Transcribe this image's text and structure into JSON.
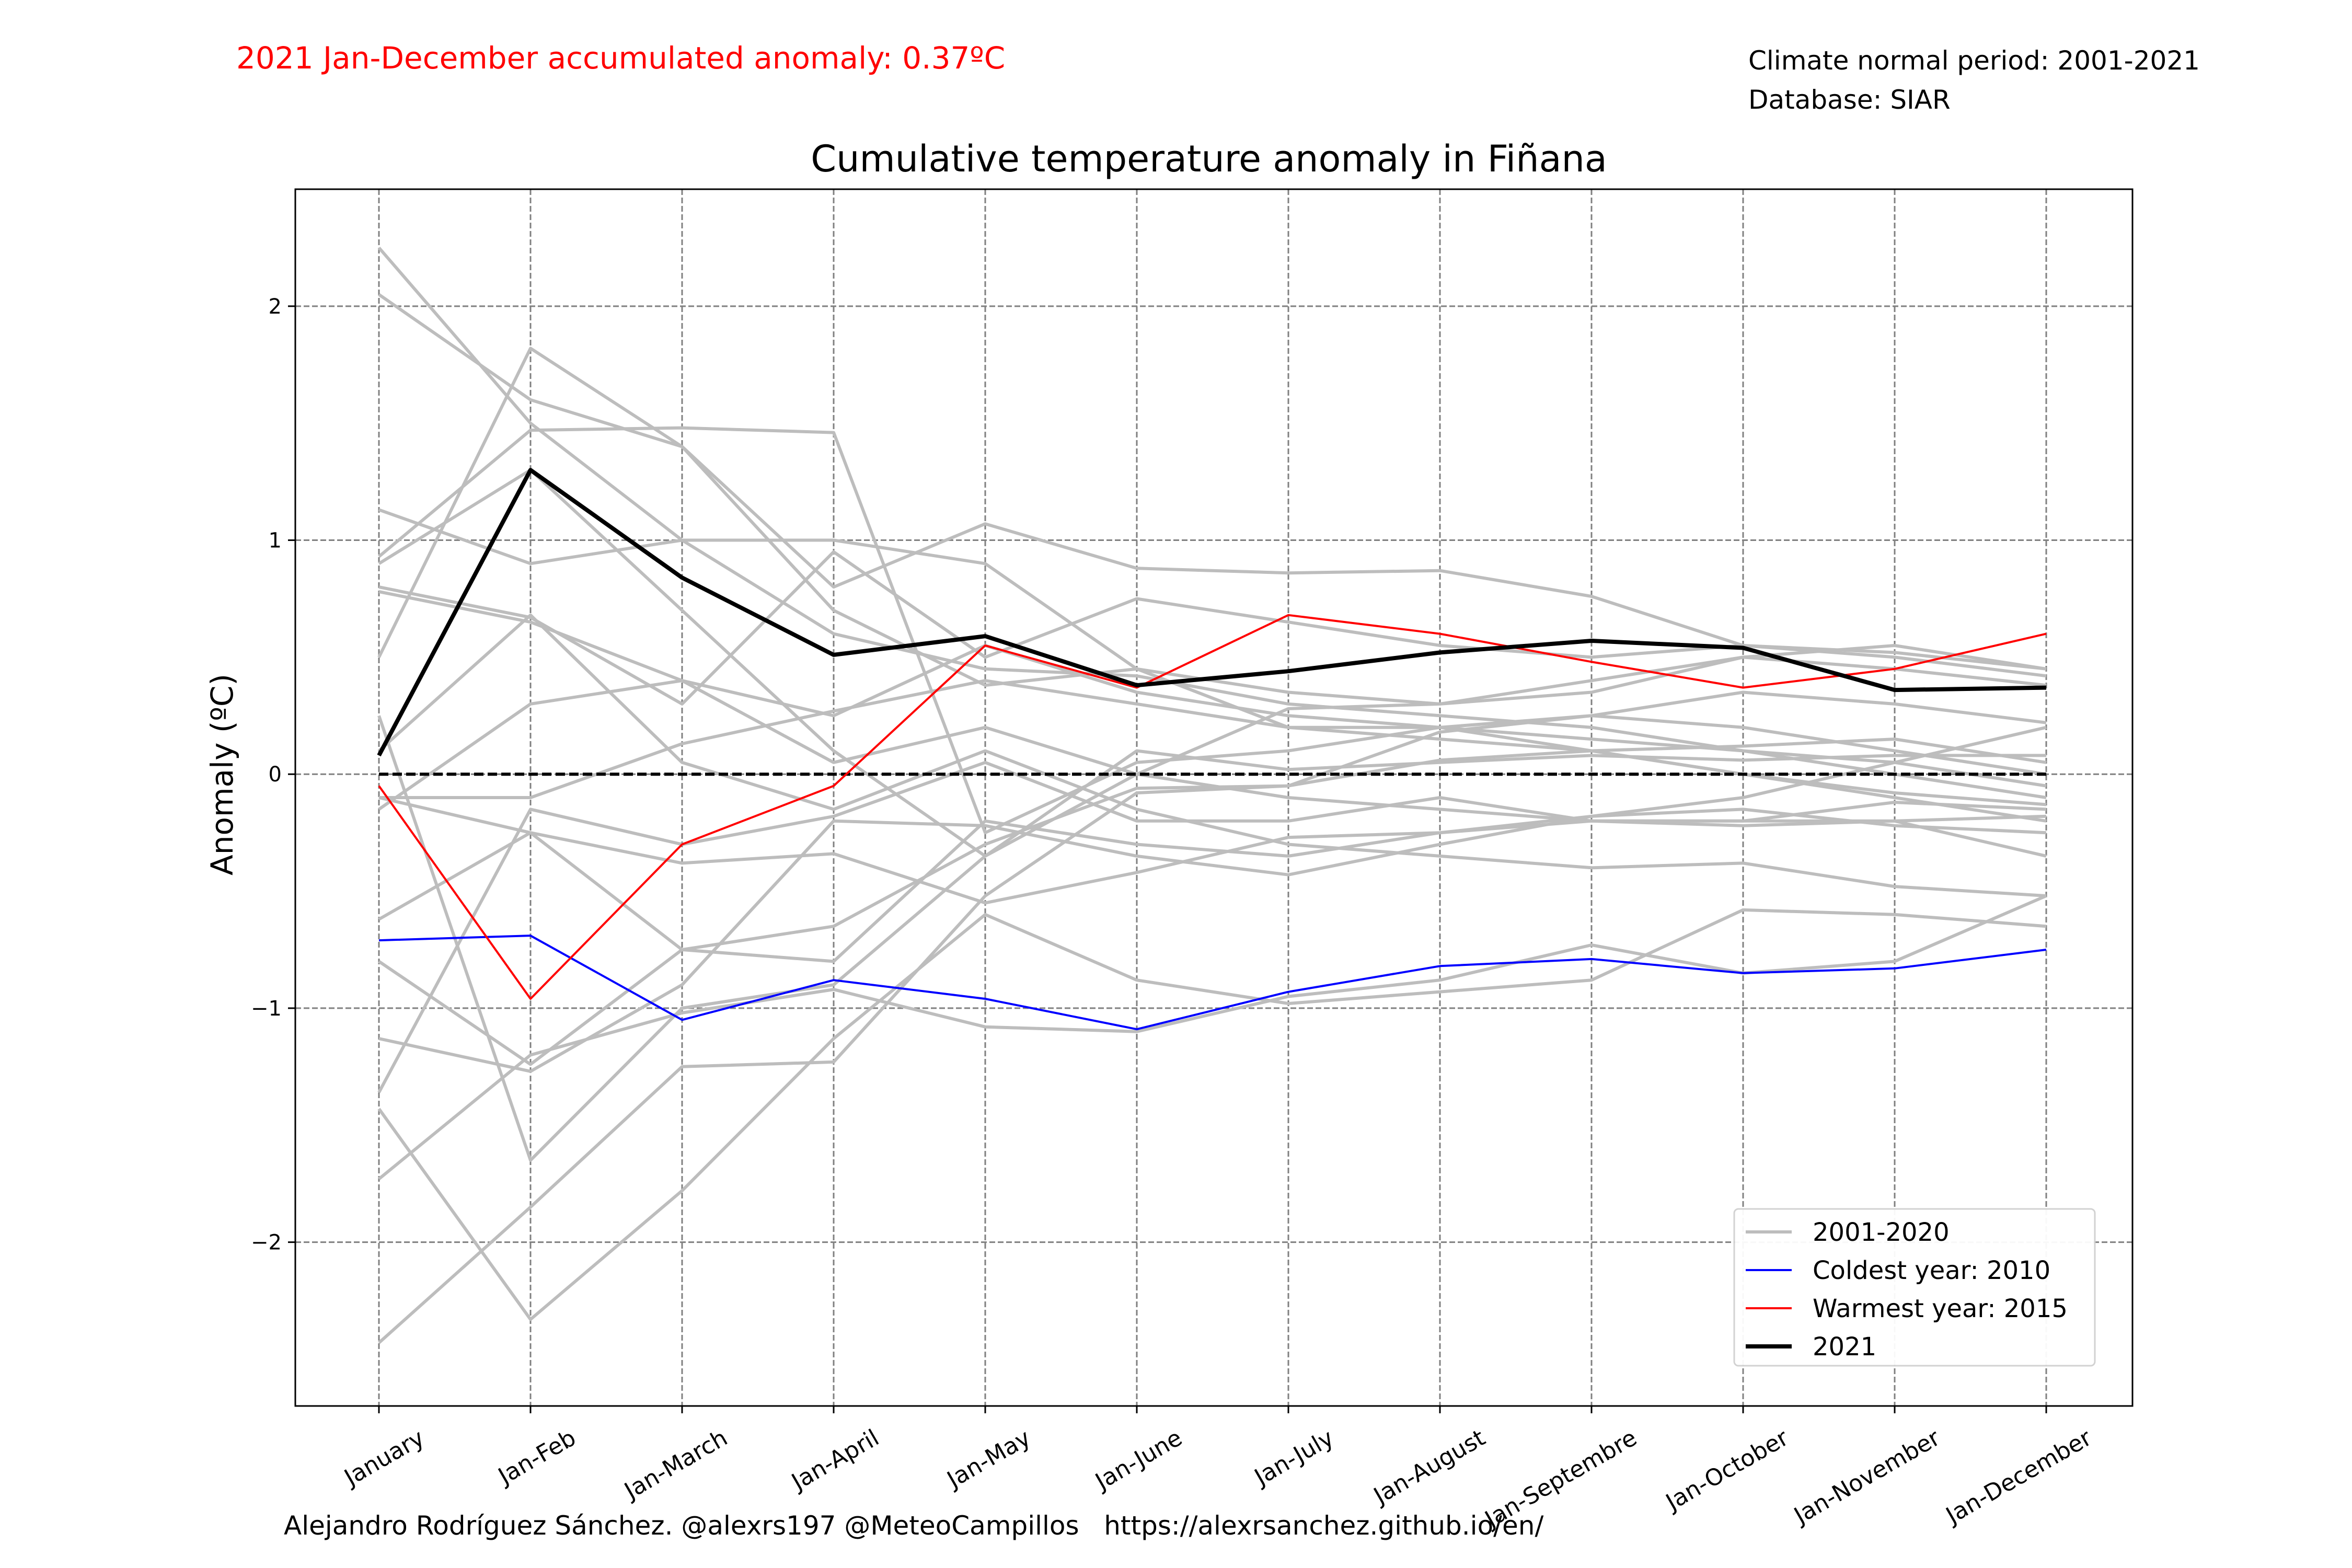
{
  "header": {
    "accumulated_anomaly": "2021 Jan-December accumulated anomaly: 0.37ºC",
    "climate_normal": "Climate normal period: 2001-2021",
    "database": "Database: SIAR"
  },
  "footer": {
    "credits": "Alejandro Rodríguez Sánchez. @alexrs197 @MeteoCampillos   https://alexrsanchez.github.io/en/"
  },
  "colors": {
    "historical": "#bdbdbd",
    "coldest": "#0000ff",
    "warmest": "#ff0000",
    "current": "#000000",
    "accent_text": "#ff0000"
  },
  "chart_data": {
    "type": "line",
    "title": "Cumulative temperature anomaly in Fiñana",
    "xlabel": "",
    "ylabel": "Anomaly (ºC)",
    "ylim": [
      -2.7,
      2.5
    ],
    "yticks": [
      2,
      1,
      0,
      -1,
      -2
    ],
    "ytick_labels": [
      "2",
      "1",
      "0",
      "−1",
      "−2"
    ],
    "grid": true,
    "legend_position": "lower-right",
    "categories": [
      "January",
      "Jan-Feb",
      "Jan-March",
      "Jan-April",
      "Jan-May",
      "Jan-June",
      "Jan-July",
      "Jan-August",
      "Jan-Septembre",
      "Jan-October",
      "Jan-November",
      "Jan-December"
    ],
    "reference_line": 0,
    "historical": {
      "legend_label": "2001-2020",
      "series": [
        [
          2.25,
          1.5,
          1.0,
          0.6,
          0.45,
          0.42,
          0.3,
          0.25,
          0.2,
          0.1,
          0.0,
          -0.1
        ],
        [
          2.05,
          1.6,
          1.4,
          0.8,
          1.07,
          0.88,
          0.86,
          0.87,
          0.76,
          0.55,
          0.5,
          0.42
        ],
        [
          1.13,
          0.9,
          1.0,
          1.0,
          0.9,
          0.45,
          0.35,
          0.3,
          0.35,
          0.5,
          0.55,
          0.45
        ],
        [
          0.93,
          1.47,
          1.48,
          1.46,
          -0.25,
          0.05,
          0.1,
          0.2,
          0.15,
          0.1,
          0.05,
          -0.05
        ],
        [
          0.8,
          0.67,
          0.3,
          0.95,
          0.5,
          0.75,
          0.65,
          0.55,
          0.5,
          0.55,
          0.52,
          0.45
        ],
        [
          0.78,
          0.65,
          0.4,
          0.25,
          0.55,
          0.35,
          0.25,
          0.2,
          0.25,
          0.35,
          0.3,
          0.22
        ],
        [
          0.5,
          1.82,
          1.4,
          0.7,
          0.38,
          0.45,
          0.2,
          0.15,
          0.1,
          0.0,
          -0.1,
          -0.2
        ],
        [
          -0.15,
          0.3,
          0.4,
          0.05,
          0.2,
          0.0,
          -0.1,
          -0.15,
          -0.2,
          -0.2,
          -0.12,
          -0.15
        ],
        [
          -0.1,
          -0.1,
          0.13,
          0.27,
          0.4,
          0.3,
          0.2,
          0.2,
          0.1,
          0.0,
          -0.08,
          -0.13
        ],
        [
          -0.1,
          -0.25,
          -0.75,
          -0.8,
          -0.2,
          -0.3,
          -0.35,
          -0.25,
          -0.2,
          -0.22,
          -0.2,
          -0.18
        ],
        [
          -0.62,
          -0.25,
          -0.38,
          -0.34,
          -0.55,
          -0.42,
          -0.27,
          -0.25,
          -0.18,
          -0.1,
          0.05,
          0.2
        ],
        [
          -0.8,
          -1.24,
          -0.75,
          -0.65,
          -0.3,
          -0.06,
          -0.05,
          0.06,
          0.1,
          0.12,
          0.15,
          0.05
        ],
        [
          -1.13,
          -1.27,
          -0.9,
          -0.2,
          -0.22,
          -0.35,
          -0.43,
          -0.3,
          -0.18,
          -0.15,
          -0.22,
          -0.25
        ],
        [
          -1.36,
          -0.15,
          -0.3,
          -0.18,
          0.05,
          -0.2,
          -0.2,
          -0.1,
          -0.2,
          -0.2,
          -0.2,
          -0.35
        ],
        [
          -1.43,
          -2.33,
          -1.78,
          -1.13,
          -0.6,
          -0.88,
          -0.98,
          -0.93,
          -0.88,
          -0.58,
          -0.6,
          -0.65
        ],
        [
          -1.73,
          -1.2,
          -1.02,
          -0.92,
          -1.08,
          -1.1,
          -0.95,
          -0.88,
          -0.73,
          -0.85,
          -0.8,
          -0.52
        ],
        [
          -2.43,
          -1.85,
          -1.25,
          -1.23,
          -0.52,
          -0.08,
          -0.05,
          0.18,
          0.25,
          0.2,
          0.1,
          0.0
        ],
        [
          0.25,
          -1.65,
          -1.0,
          -0.9,
          -0.35,
          0.0,
          0.28,
          0.3,
          0.4,
          0.5,
          0.45,
          0.38
        ],
        [
          0.1,
          0.68,
          0.05,
          -0.15,
          0.1,
          -0.15,
          -0.3,
          -0.35,
          -0.4,
          -0.38,
          -0.48,
          -0.52
        ],
        [
          0.9,
          1.3,
          0.7,
          0.1,
          -0.35,
          0.1,
          0.02,
          0.05,
          0.08,
          0.06,
          0.08,
          0.08
        ]
      ]
    },
    "series": [
      {
        "name": "Coldest year: 2010",
        "color": "#0000ff",
        "values": [
          -0.71,
          -0.69,
          -1.05,
          -0.88,
          -0.96,
          -1.09,
          -0.93,
          -0.82,
          -0.79,
          -0.85,
          -0.83,
          -0.75
        ]
      },
      {
        "name": "Warmest year: 2015",
        "color": "#ff0000",
        "values": [
          -0.05,
          -0.96,
          -0.3,
          -0.05,
          0.55,
          0.37,
          0.68,
          0.6,
          0.48,
          0.37,
          0.45,
          0.6
        ]
      },
      {
        "name": "2021",
        "color": "#000000",
        "values": [
          0.08,
          1.3,
          0.84,
          0.51,
          0.59,
          0.38,
          0.44,
          0.52,
          0.57,
          0.54,
          0.36,
          0.37
        ]
      }
    ]
  }
}
